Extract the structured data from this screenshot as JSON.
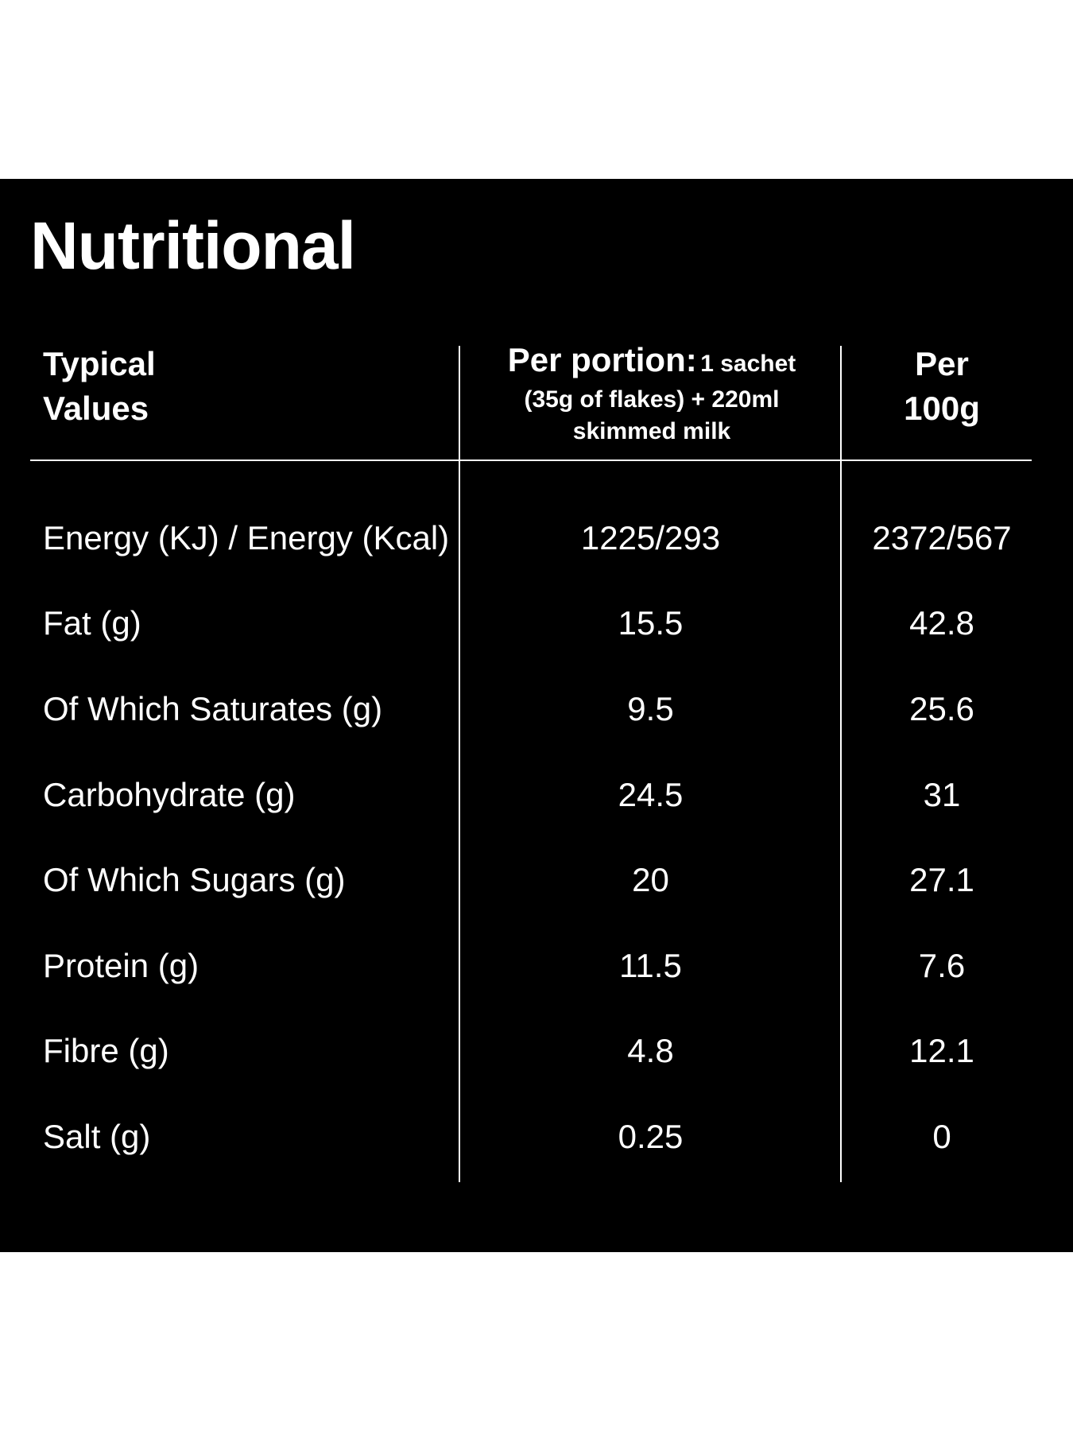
{
  "title": "Nutritional",
  "headers": {
    "typical_line1": "Typical",
    "typical_line2": "Values",
    "portion_bold": "Per portion:",
    "portion_rest_line1": "1 sachet",
    "portion_line2": "(35g of flakes) + 220ml",
    "portion_line3": "skimmed milk",
    "per100g_line1": "Per",
    "per100g_line2": "100g"
  },
  "rows": [
    {
      "label": "Energy (KJ) / Energy (Kcal)",
      "portion": "1225/293",
      "per100g": "2372/567"
    },
    {
      "label": "Fat (g)",
      "portion": "15.5",
      "per100g": "42.8"
    },
    {
      "label": "Of Which Saturates (g)",
      "portion": "9.5",
      "per100g": "25.6"
    },
    {
      "label": "Carbohydrate (g)",
      "portion": "24.5",
      "per100g": "31"
    },
    {
      "label": "Of Which Sugars (g)",
      "portion": "20",
      "per100g": "27.1"
    },
    {
      "label": "Protein (g)",
      "portion": "11.5",
      "per100g": "7.6"
    },
    {
      "label": "Fibre (g)",
      "portion": "4.8",
      "per100g": "12.1"
    },
    {
      "label": "Salt (g)",
      "portion": "0.25",
      "per100g": "0"
    }
  ],
  "colors": {
    "panel_background": "#000000",
    "text": "#ffffff",
    "page_background": "#ffffff"
  }
}
